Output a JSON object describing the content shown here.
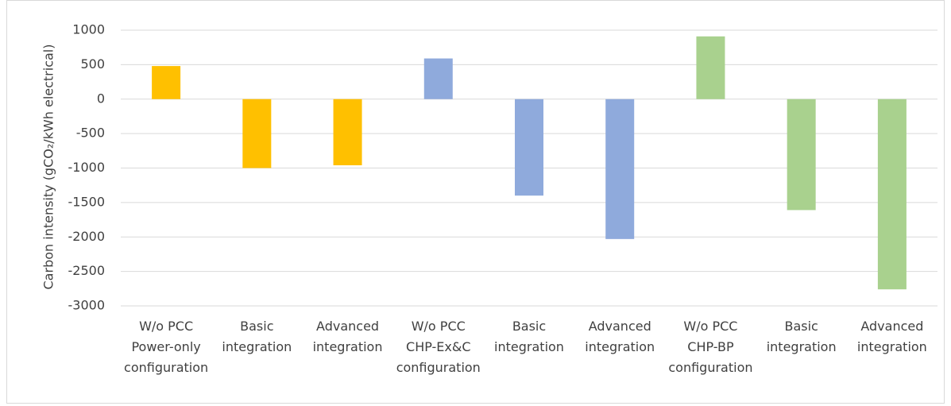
{
  "chart_data": {
    "type": "bar",
    "y_label": "Carbon intensity (gCO₂/kWh electrical)",
    "categories": [
      "W/o PCC\nPower-only\nconfiguration",
      "Basic\nintegration",
      "Advanced\nintegration",
      "W/o PCC\nCHP-Ex&C\nconfiguration",
      "Basic\nintegration",
      "Advanced\nintegration",
      "W/o PCC\nCHP-BP\nconfiguration",
      "Basic\nintegration",
      "Advanced\nintegration"
    ],
    "values": [
      480,
      -1000,
      -960,
      590,
      -1400,
      -2030,
      910,
      -1610,
      -2760
    ],
    "colors": [
      "#ffc000",
      "#ffc000",
      "#ffc000",
      "#8faadc",
      "#8faadc",
      "#8faadc",
      "#a9d18e",
      "#a9d18e",
      "#a9d18e"
    ],
    "ylim": [
      -3000,
      1000
    ],
    "yticks": [
      -3000,
      -2500,
      -2000,
      -1500,
      -1000,
      -500,
      0,
      500,
      1000
    ],
    "grid": true
  }
}
